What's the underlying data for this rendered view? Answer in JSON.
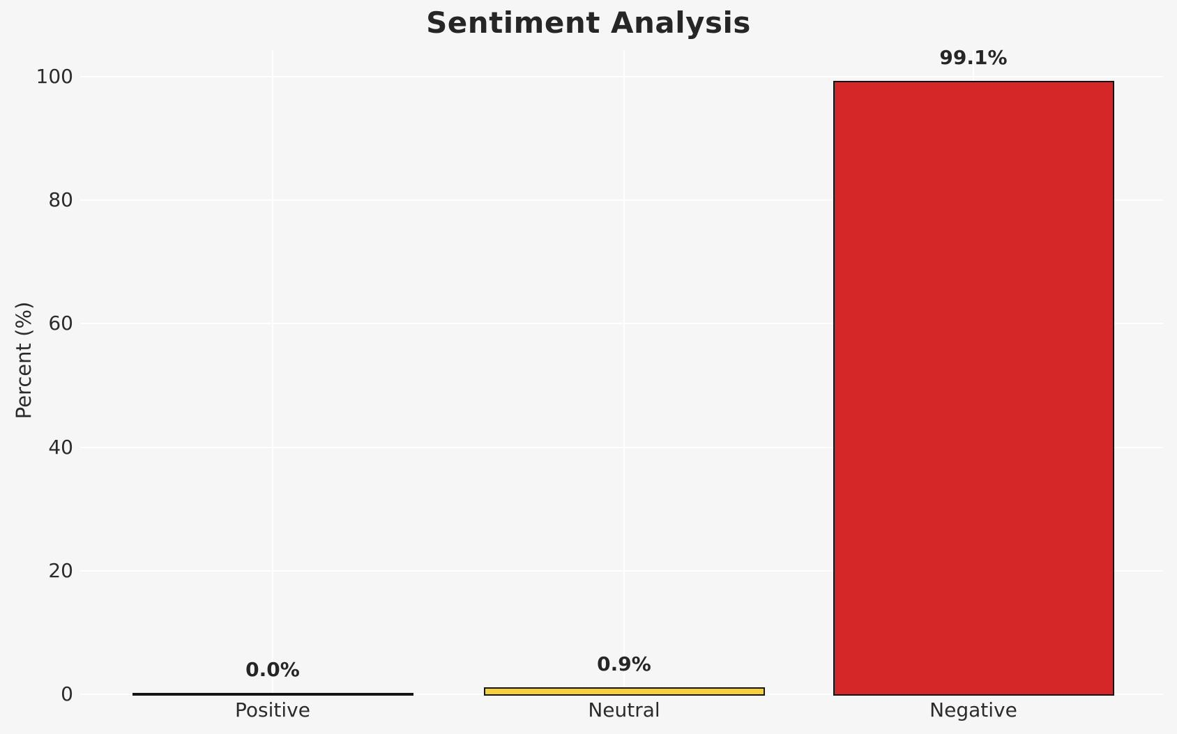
{
  "figure": {
    "background_color": "#f6f6f6"
  },
  "chart_data": {
    "type": "bar",
    "title": "Sentiment Analysis",
    "categories": [
      "Positive",
      "Neutral",
      "Negative"
    ],
    "values": [
      0.0,
      0.9,
      99.1
    ],
    "value_labels": [
      "0.0%",
      "0.9%",
      "99.1%"
    ],
    "bar_colors": [
      "#f6f6f6",
      "#f4d03f",
      "#d62728"
    ],
    "bar_edge_color": "#141414",
    "xlabel": "",
    "ylabel": "Percent (%)",
    "yticks": [
      0,
      20,
      40,
      60,
      80,
      100
    ],
    "ylim": [
      0,
      104
    ],
    "grid": true,
    "gridline_color": "#ffffff",
    "background_color": "#f6f6f6",
    "text_color": "#2b2b2b",
    "legend_position": "none"
  }
}
